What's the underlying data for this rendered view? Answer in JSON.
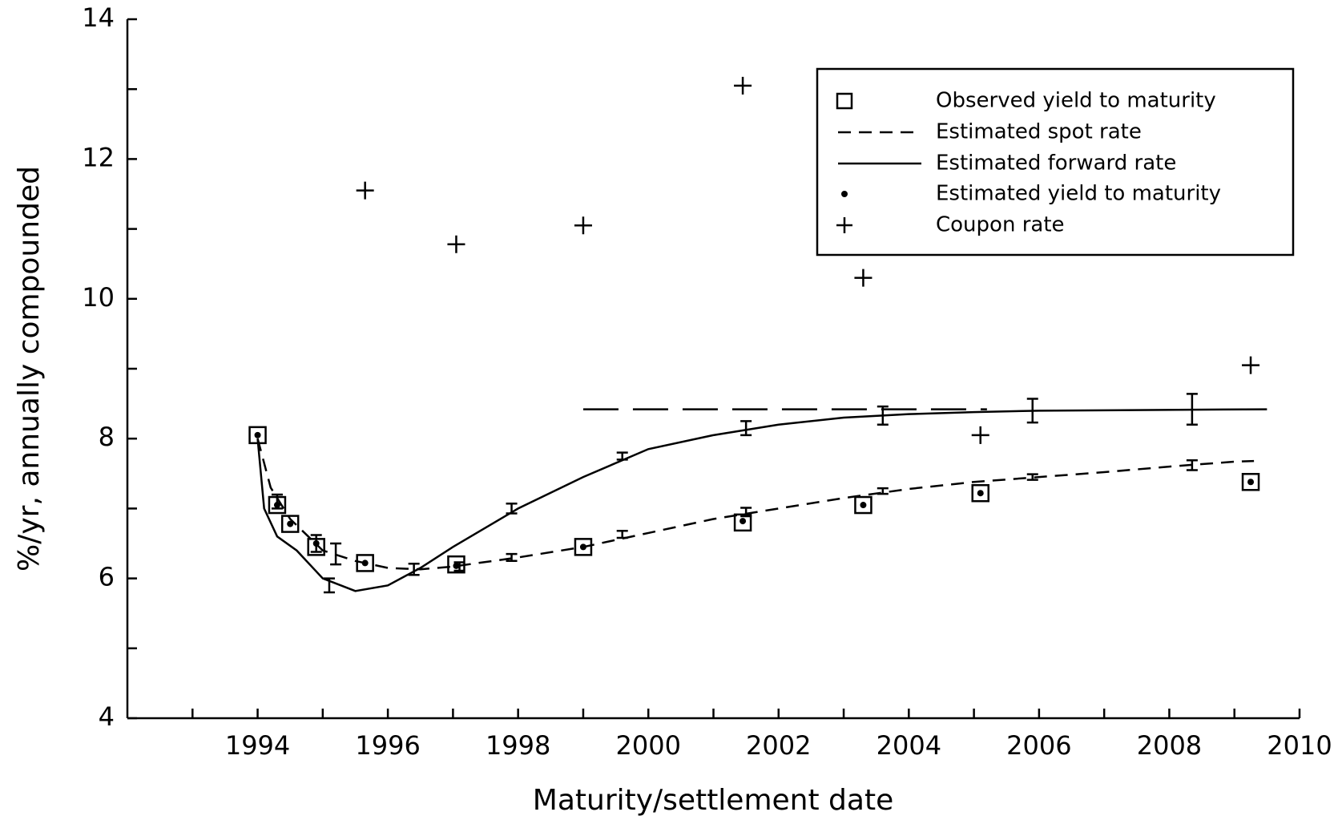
{
  "chart_data": {
    "type": "line",
    "xlabel": "Maturity/settlement date",
    "ylabel": "%/yr, annually compounded",
    "xlim": [
      1992,
      2010
    ],
    "xticks": [
      1994,
      1996,
      1998,
      2000,
      2002,
      2004,
      2006,
      2008,
      2010
    ],
    "xminorticks": [
      1993,
      1995,
      1997,
      1999,
      2001,
      2003,
      2005,
      2007,
      2009
    ],
    "ylim": [
      4,
      14
    ],
    "yticks": [
      4,
      6,
      8,
      10,
      12,
      14
    ],
    "yminorticks": [
      5,
      7,
      9,
      11,
      13
    ],
    "legend": "upper right",
    "series": [
      {
        "name": "Observed yield to maturity",
        "style": "square",
        "color": "#000000",
        "x": [
          1994.0,
          1994.3,
          1994.5,
          1994.9,
          1995.65,
          1997.05,
          1999.0,
          2001.45,
          2003.3,
          2005.1,
          2009.25
        ],
        "values": [
          8.05,
          7.05,
          6.78,
          6.45,
          6.22,
          6.2,
          6.45,
          6.8,
          7.05,
          7.22,
          7.38
        ]
      },
      {
        "name": "Estimated spot rate",
        "style": "dashed",
        "color": "#000000",
        "x": [
          1994.0,
          1994.2,
          1994.5,
          1995.0,
          1995.5,
          1996.0,
          1996.5,
          1997.0,
          1998.0,
          1999.0,
          2000.0,
          2001.0,
          2002.0,
          2003.0,
          2004.0,
          2005.0,
          2006.0,
          2007.0,
          2008.0,
          2009.0,
          2009.3
        ],
        "values": [
          8.0,
          7.3,
          6.85,
          6.4,
          6.25,
          6.15,
          6.13,
          6.17,
          6.3,
          6.45,
          6.65,
          6.85,
          7.0,
          7.15,
          7.28,
          7.38,
          7.45,
          7.52,
          7.6,
          7.67,
          7.68
        ]
      },
      {
        "name": "Estimated forward rate",
        "style": "solid",
        "color": "#000000",
        "x": [
          1994.0,
          1994.1,
          1994.3,
          1994.6,
          1995.0,
          1995.5,
          1996.0,
          1996.5,
          1997.0,
          1998.0,
          1999.0,
          2000.0,
          2001.0,
          2002.0,
          2003.0,
          2004.0,
          2005.0,
          2006.0,
          2009.5
        ],
        "values": [
          8.0,
          7.0,
          6.6,
          6.4,
          6.0,
          5.82,
          5.9,
          6.15,
          6.45,
          7.0,
          7.45,
          7.85,
          8.05,
          8.2,
          8.3,
          8.35,
          8.38,
          8.4,
          8.42
        ]
      },
      {
        "name": "Estimated yield to maturity",
        "style": "dot",
        "color": "#000000",
        "x": [
          1994.0,
          1994.3,
          1994.5,
          1994.9,
          1995.65,
          1997.05,
          1999.0,
          2001.45,
          2003.3,
          2005.1,
          2009.25
        ],
        "values": [
          8.05,
          7.05,
          6.78,
          6.5,
          6.22,
          6.18,
          6.45,
          6.82,
          7.05,
          7.22,
          7.38
        ]
      },
      {
        "name": "Coupon rate",
        "style": "plus",
        "color": "#000000",
        "x": [
          1995.65,
          1997.05,
          1999.0,
          2001.45,
          2003.3,
          2005.1,
          2009.25
        ],
        "values": [
          11.55,
          10.78,
          11.05,
          13.05,
          10.3,
          8.05,
          9.05
        ]
      }
    ],
    "asymptote": {
      "x": [
        1999.0,
        2005.2
      ],
      "values": [
        8.42,
        8.42
      ]
    },
    "error_bars": {
      "x": [
        1994.3,
        1994.9,
        1995.2,
        1996.4,
        1997.1,
        1997.9,
        1999.6,
        2001.5,
        2003.6,
        2005.9,
        2008.35,
        1995.1,
        1997.9,
        1999.6,
        2001.5,
        2003.6,
        2005.9,
        2008.35
      ],
      "values": [
        7.1,
        6.5,
        6.35,
        6.13,
        6.17,
        6.3,
        6.63,
        6.95,
        7.25,
        7.45,
        7.62,
        5.9,
        7.0,
        7.75,
        8.15,
        8.33,
        8.4,
        8.42
      ],
      "errors": [
        0.1,
        0.12,
        0.15,
        0.08,
        0.06,
        0.05,
        0.05,
        0.06,
        0.04,
        0.04,
        0.07,
        0.1,
        0.07,
        0.05,
        0.1,
        0.13,
        0.17,
        0.22
      ]
    }
  }
}
